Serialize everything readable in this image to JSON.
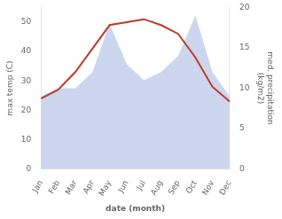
{
  "chart_data": {
    "type": "line",
    "categories": [
      "Jan",
      "Feb",
      "Mar",
      "Apr",
      "May",
      "Jun",
      "Jul",
      "Aug",
      "Sep",
      "Oct",
      "Nov",
      "Dec"
    ],
    "xlabel": "date (month)",
    "ylabel": "max temp (C)",
    "y2label": "med. precipitation\n(kg/m2)",
    "series": [
      {
        "type": "area",
        "axis": "y2",
        "color": "#b8c4e8",
        "values": [
          9,
          10,
          10,
          12,
          18,
          13,
          11,
          12,
          14,
          19,
          12,
          9
        ]
      },
      {
        "type": "line",
        "axis": "y",
        "color": "#c0392b",
        "values": [
          24,
          27,
          33,
          41,
          49,
          50,
          51,
          49,
          46,
          38,
          28,
          23
        ]
      }
    ],
    "ylim": [
      0,
      55
    ],
    "yticks": [
      0,
      10,
      20,
      30,
      40,
      50
    ],
    "y2lim": [
      0,
      20
    ],
    "y2ticks": [
      0,
      5,
      10,
      15,
      20
    ],
    "grid": false
  }
}
